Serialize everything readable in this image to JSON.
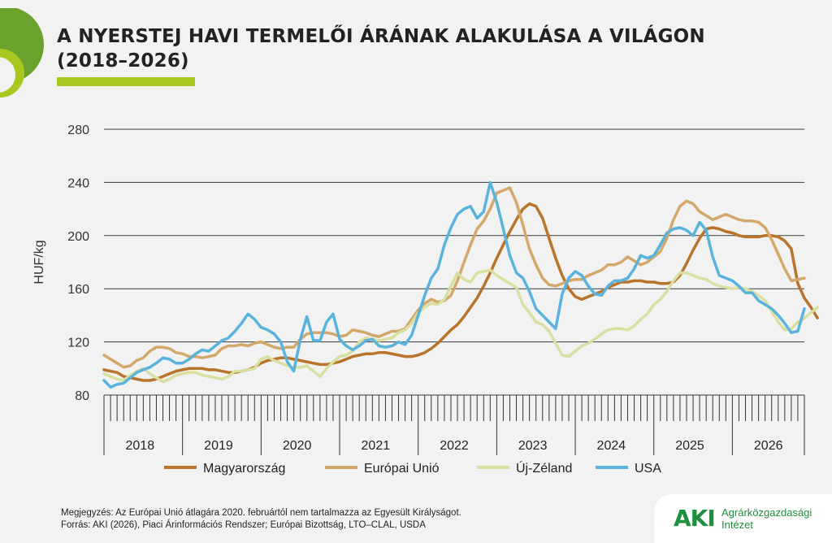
{
  "title_line1": "A NYERSTEJ HAVI TERMELŐI ÁRÁNAK ALAKULÁSA A VILÁGON",
  "title_line2": "(2018–2026)",
  "notes": {
    "line1": "Megjegyzés: Az Európai Unió átlagára 2020. februártól nem tartalmazza az Egyesült Királyságot.",
    "line2": "Forrás: AKI (2026), Piaci Árinformációs Rendszer; Európai Bizottság, LTO–CLAL, USDA"
  },
  "logo": {
    "mark": "AKI",
    "line1": "Agrárközgazdasági",
    "line2": "Intézet"
  },
  "colors": {
    "accent_green": "#a8c820",
    "deco_dark": "#6aa22d",
    "deco_light": "#a8c820",
    "logo_green": "#1e8f3c"
  },
  "chart_data": {
    "type": "line",
    "ylabel": "HUF/kg",
    "ylim": [
      80,
      280
    ],
    "yticks": [
      80,
      120,
      160,
      200,
      240,
      280
    ],
    "grid": "horizontal",
    "legend_position": "bottom",
    "x_labels": [
      "2018",
      "2019",
      "2020",
      "2021",
      "2022",
      "2023",
      "2024",
      "2025",
      "2026"
    ],
    "x_start": "2018-01",
    "months_per_year": 12,
    "series": [
      {
        "name": "Magyarország",
        "color": "#b8742a",
        "values": [
          99,
          98,
          97,
          94,
          93,
          92,
          91,
          91,
          92,
          94,
          96,
          98,
          99,
          100,
          100,
          100,
          99,
          99,
          98,
          97,
          97,
          98,
          99,
          101,
          104,
          106,
          107,
          108,
          108,
          107,
          106,
          105,
          104,
          103,
          103,
          104,
          105,
          107,
          109,
          110,
          111,
          111,
          112,
          112,
          111,
          110,
          109,
          109,
          110,
          112,
          115,
          119,
          124,
          129,
          133,
          139,
          146,
          153,
          162,
          172,
          183,
          193,
          203,
          212,
          220,
          224,
          222,
          213,
          198,
          183,
          170,
          160,
          154,
          152,
          154,
          156,
          158,
          161,
          163,
          165,
          165,
          166,
          166,
          165,
          165,
          164,
          164,
          165,
          170,
          179,
          189,
          198,
          205,
          206,
          205,
          203,
          202,
          200,
          199,
          199,
          199,
          200,
          200,
          199,
          196,
          190,
          164,
          153,
          146,
          138
        ]
      },
      {
        "name": "Európai Unió",
        "color": "#d4a86a",
        "values": [
          110,
          107,
          104,
          101,
          102,
          106,
          108,
          113,
          116,
          116,
          115,
          112,
          111,
          109,
          109,
          108,
          109,
          110,
          115,
          117,
          117,
          118,
          117,
          119,
          120,
          118,
          116,
          115,
          116,
          116,
          122,
          126,
          127,
          127,
          127,
          126,
          124,
          125,
          129,
          128,
          127,
          125,
          124,
          126,
          128,
          128,
          130,
          137,
          144,
          149,
          152,
          150,
          151,
          155,
          166,
          180,
          193,
          205,
          211,
          220,
          232,
          234,
          236,
          225,
          208,
          190,
          178,
          168,
          163,
          162,
          164,
          166,
          167,
          167,
          170,
          172,
          174,
          178,
          178,
          180,
          184,
          181,
          178,
          180,
          184,
          188,
          198,
          212,
          222,
          226,
          224,
          218,
          215,
          212,
          214,
          216,
          214,
          212,
          211,
          211,
          210,
          206,
          197,
          186,
          175,
          166,
          167,
          168
        ]
      },
      {
        "name": "Új-Zéland",
        "color": "#d8dfa0",
        "values": [
          96,
          94,
          92,
          91,
          95,
          98,
          100,
          96,
          93,
          90,
          92,
          95,
          96,
          97,
          97,
          95,
          94,
          93,
          92,
          94,
          98,
          98,
          99,
          100,
          107,
          109,
          106,
          104,
          102,
          101,
          101,
          102,
          98,
          94,
          100,
          105,
          109,
          110,
          113,
          120,
          123,
          122,
          121,
          122,
          123,
          127,
          129,
          134,
          142,
          146,
          149,
          148,
          152,
          162,
          172,
          167,
          165,
          172,
          173,
          174,
          170,
          167,
          164,
          161,
          148,
          142,
          135,
          133,
          128,
          119,
          110,
          109,
          113,
          117,
          119,
          122,
          126,
          129,
          130,
          130,
          129,
          132,
          137,
          141,
          148,
          152,
          158,
          166,
          172,
          172,
          170,
          168,
          167,
          164,
          162,
          161,
          160,
          161,
          160,
          158,
          155,
          151,
          143,
          135,
          129,
          130,
          135,
          138,
          142,
          146
        ]
      },
      {
        "name": "USA",
        "color": "#5ab3dc",
        "values": [
          91,
          86,
          88,
          89,
          93,
          97,
          99,
          101,
          104,
          108,
          107,
          104,
          104,
          107,
          111,
          114,
          113,
          117,
          121,
          123,
          128,
          134,
          141,
          137,
          131,
          129,
          126,
          120,
          105,
          98,
          122,
          139,
          121,
          121,
          135,
          141,
          122,
          117,
          114,
          117,
          121,
          122,
          117,
          116,
          117,
          120,
          118,
          125,
          140,
          155,
          168,
          175,
          193,
          206,
          216,
          220,
          222,
          213,
          218,
          240,
          225,
          205,
          185,
          172,
          168,
          158,
          145,
          140,
          135,
          130,
          156,
          168,
          173,
          170,
          162,
          156,
          155,
          162,
          166,
          166,
          168,
          175,
          185,
          183,
          185,
          193,
          202,
          205,
          206,
          204,
          200,
          210,
          204,
          184,
          170,
          168,
          166,
          162,
          157,
          157,
          151,
          148,
          145,
          140,
          134,
          127,
          128,
          145
        ]
      }
    ]
  }
}
